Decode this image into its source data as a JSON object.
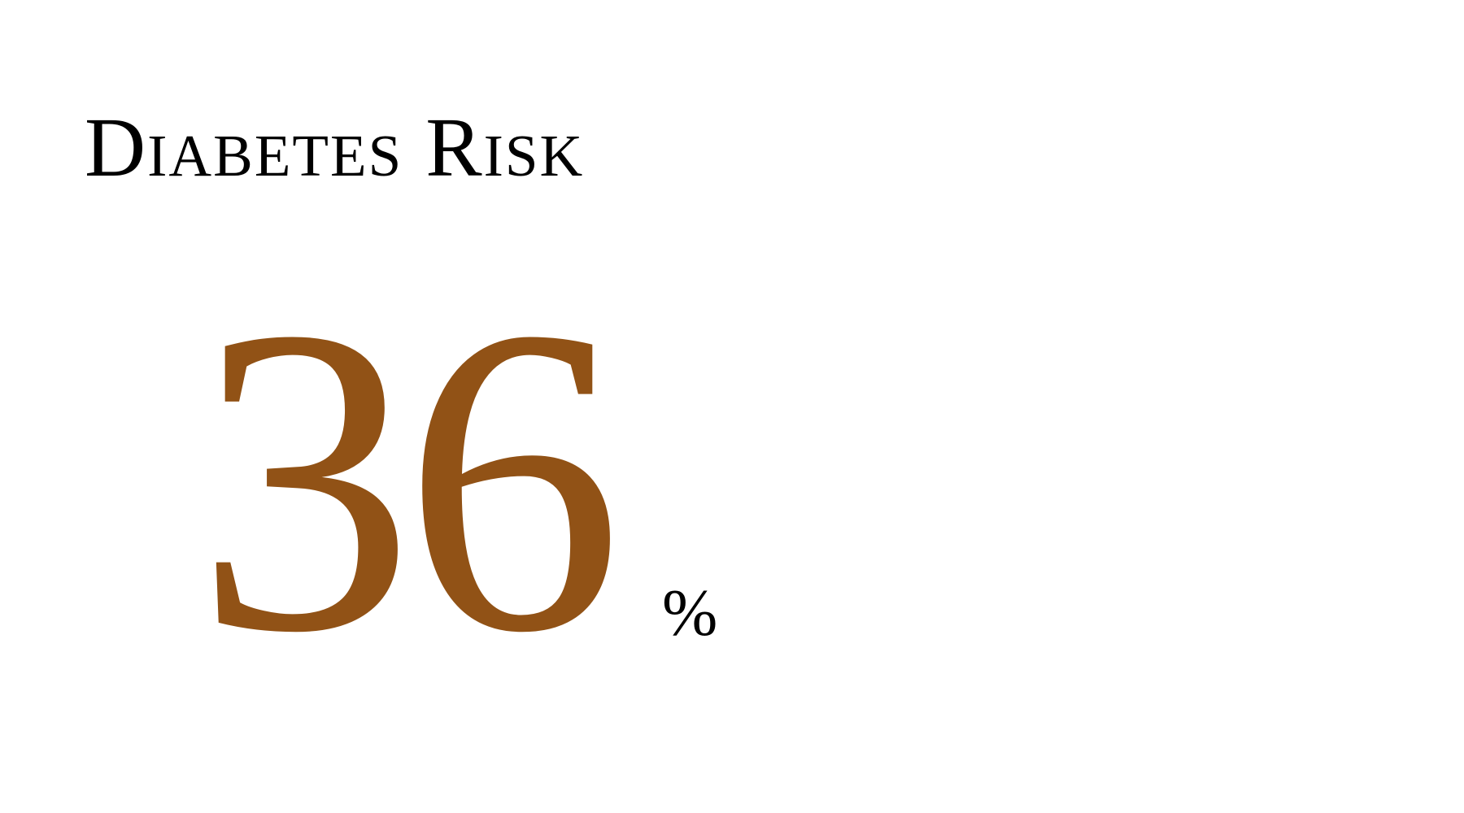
{
  "title": "Diabetes Risk",
  "risk": {
    "value": "36",
    "unit": "%"
  },
  "colors": {
    "background": "#ffffff",
    "title": "#000000",
    "value": "#915216",
    "unit": "#000000"
  }
}
